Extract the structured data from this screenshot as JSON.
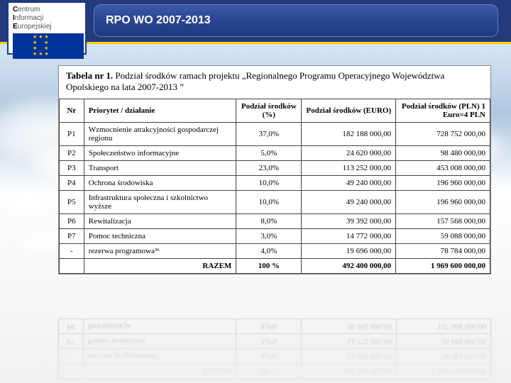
{
  "logo": {
    "line1_b": "C",
    "line1": "entrum",
    "line2_b": "I",
    "line2": "nformacji",
    "line3_b": "E",
    "line3": "uropejskiej"
  },
  "header": {
    "title": "RPO WO 2007-2013"
  },
  "caption": {
    "label": "Tabela nr 1.",
    "text": " Podział środków ramach projektu „Regionalnego Programu Operacyjnego Województwa Opolskiego na lata 2007-2013 ”"
  },
  "columns": {
    "nr": "Nr",
    "name": "Priorytet / działanie",
    "pct": "Podział środków (%)",
    "eur": "Podział środków (EURO)",
    "pln": "Podział środków (PLN) 1 Euro=4 PLN"
  },
  "rows": [
    {
      "nr": "P1",
      "name": "Wzmocnienie atrakcyjności gospodarczej regionu",
      "pct": "37,0%",
      "eur": "182 188 000,00",
      "pln": "728 752 000,00"
    },
    {
      "nr": "P2",
      "name": "Społeczeństwo informacyjne",
      "pct": "5,0%",
      "eur": "24 620 000,00",
      "pln": "98 480 000,00"
    },
    {
      "nr": "P3",
      "name": "Transport",
      "pct": "23,0%",
      "eur": "113 252 000,00",
      "pln": "453 008 000,00"
    },
    {
      "nr": "P4",
      "name": "Ochrona środowiska",
      "pct": "10,0%",
      "eur": "49 240 000,00",
      "pln": "196 960 000,00"
    },
    {
      "nr": "P5",
      "name": "Infrastruktura społeczna i szkolnictwo wyższe",
      "pct": "10,0%",
      "eur": "49 240 000,00",
      "pln": "196 960 000,00"
    },
    {
      "nr": "P6",
      "name": "Rewitalizacja",
      "pct": "8,0%",
      "eur": "39 392 000,00",
      "pln": "157 568 000,00"
    },
    {
      "nr": "P7",
      "name": "Pomoc techniczna",
      "pct": "3,0%",
      "eur": "14 772 000,00",
      "pln": "59 088 000,00"
    },
    {
      "nr": "-",
      "name": "rezerwa programowa³⁶",
      "pct": "4,0%",
      "eur": "19 696 000,00",
      "pln": "78 784 000,00"
    }
  ],
  "total": {
    "nr": "",
    "name": "RAZEM",
    "pct": "100 %",
    "eur": "492 400 000,00",
    "pln": "1 969 600 000,00"
  },
  "colors": {
    "header_bg": "#243a7a",
    "accent": "#ffcc00",
    "eu_blue": "#003399",
    "border": "#444444"
  }
}
